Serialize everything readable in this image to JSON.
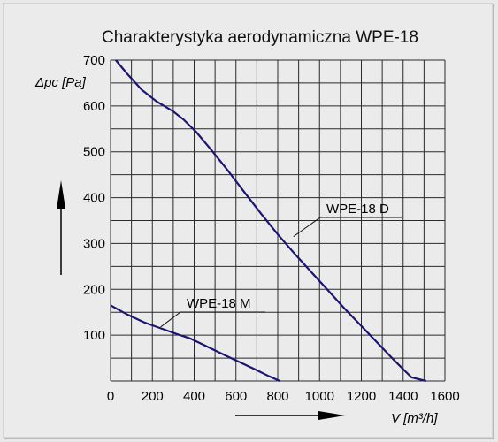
{
  "chart_data": {
    "type": "line",
    "title": "Charakterystyka aerodynamiczna  WPE-18",
    "xlabel": "V [m³/h]",
    "ylabel": "Δpc [Pa]",
    "xlim": [
      0,
      1600
    ],
    "ylim": [
      0,
      700
    ],
    "xticks": [
      0,
      200,
      400,
      600,
      800,
      1000,
      1200,
      1400,
      1600
    ],
    "yticks": [
      100,
      200,
      300,
      400,
      500,
      600,
      700
    ],
    "xgrid_step": 100,
    "ygrid_step": 50,
    "grid": true,
    "series": [
      {
        "name": "WPE-18 D",
        "color": "#1a1670",
        "x": [
          25,
          80,
          150,
          220,
          300,
          350,
          410,
          480,
          560,
          640,
          720,
          800,
          880,
          960,
          1040,
          1120,
          1200,
          1280,
          1360,
          1440,
          1510
        ],
        "y": [
          700,
          670,
          635,
          610,
          588,
          570,
          543,
          505,
          460,
          412,
          365,
          320,
          278,
          238,
          198,
          158,
          120,
          82,
          44,
          8,
          0
        ]
      },
      {
        "name": "WPE-18 M",
        "color": "#1a1670",
        "x": [
          0,
          80,
          160,
          240,
          320,
          380,
          440,
          520,
          600,
          680,
          760,
          810
        ],
        "y": [
          165,
          145,
          128,
          115,
          102,
          93,
          80,
          62,
          45,
          28,
          10,
          0
        ]
      }
    ]
  }
}
